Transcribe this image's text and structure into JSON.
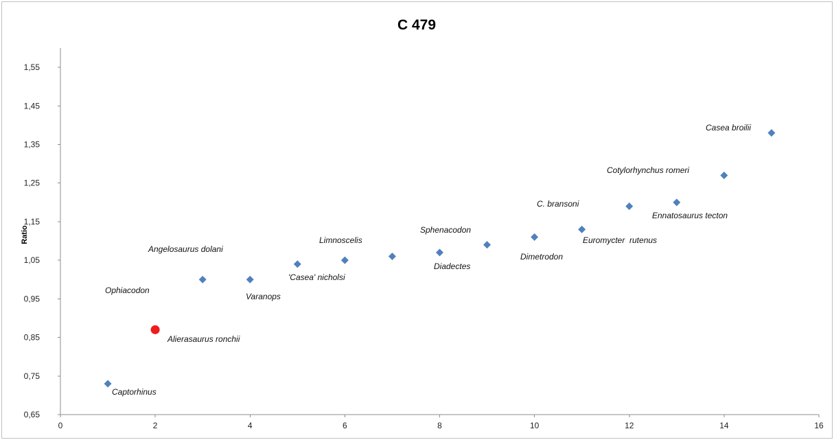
{
  "chart_data": {
    "type": "scatter",
    "title": "C 479",
    "xlabel": "",
    "ylabel": "Ratio",
    "xlim": [
      0,
      16
    ],
    "ylim": [
      0.65,
      1.6
    ],
    "x_ticks": [
      "0",
      "2",
      "4",
      "6",
      "8",
      "10",
      "12",
      "14",
      "16"
    ],
    "y_ticks": [
      "0,65",
      "0,75",
      "0,85",
      "0,95",
      "1,05",
      "1,15",
      "1,25",
      "1,35",
      "1,45",
      "1,55"
    ],
    "grid": false,
    "legend": "none",
    "marker_color": "#4f81bd",
    "highlight_color": "#ee1c1c",
    "series": [
      {
        "points": [
          {
            "x": 1,
            "y": 0.73
          },
          {
            "x": 3,
            "y": 1.0
          },
          {
            "x": 4,
            "y": 1.0
          },
          {
            "x": 5,
            "y": 1.04
          },
          {
            "x": 6,
            "y": 1.05
          },
          {
            "x": 7,
            "y": 1.06
          },
          {
            "x": 8,
            "y": 1.07
          },
          {
            "x": 9,
            "y": 1.09
          },
          {
            "x": 10,
            "y": 1.11
          },
          {
            "x": 11,
            "y": 1.13
          },
          {
            "x": 12,
            "y": 1.19
          },
          {
            "x": 13,
            "y": 1.2
          },
          {
            "x": 14,
            "y": 1.27
          },
          {
            "x": 15,
            "y": 1.38
          }
        ],
        "marker": "diamond"
      },
      {
        "points": [
          {
            "x": 2,
            "y": 0.87
          }
        ],
        "marker": "circle"
      }
    ],
    "annotations": [
      "Captorhinus",
      "Alierasaurus ronchii",
      "Ophiacodon",
      "Angelosaurus dolani",
      "Varanops",
      "'Casea' nicholsi",
      "Limnoscelis",
      "Diadectes",
      "Sphenacodon",
      "Dimetrodon",
      "Euromycter  rutenus",
      "C. bransoni",
      "Ennatosaurus tecton",
      "Cotylorhynchus romeri",
      "Casea broilii"
    ]
  }
}
